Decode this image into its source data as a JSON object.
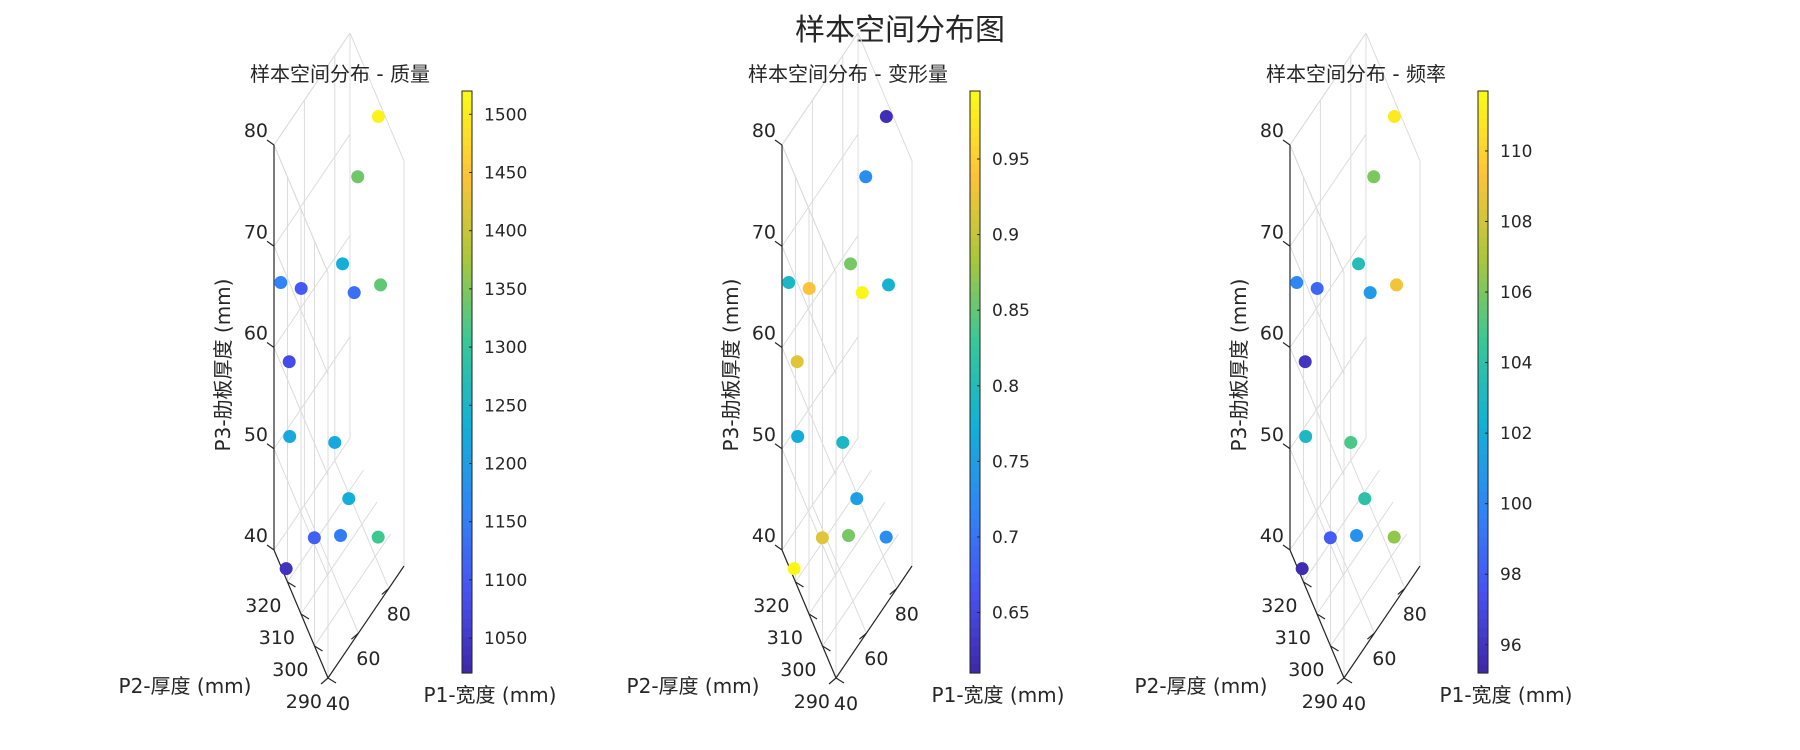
{
  "figure_title": "样本空间分布图",
  "chart_data": [
    {
      "type": "scatter3d",
      "title": "样本空间分布 - 质量",
      "xlabel": "P1-宽度 (mm)",
      "ylabel": "P2-厚度 (mm)",
      "zlabel": "P3-肋板厚度 (mm)",
      "xlim": [
        40,
        90
      ],
      "ylim": [
        290,
        330
      ],
      "zlim": [
        40,
        80
      ],
      "xticks": [
        40,
        60,
        80
      ],
      "yticks": [
        290,
        300,
        310,
        320
      ],
      "zticks": [
        40,
        50,
        60,
        70,
        80
      ],
      "colorbar": {
        "min": 1020,
        "max": 1520,
        "ticks": [
          1050,
          1100,
          1150,
          1200,
          1250,
          1300,
          1350,
          1400,
          1450,
          1500
        ]
      },
      "points": [
        {
          "x": 40,
          "y": 321,
          "z": 41,
          "c": 1040
        },
        {
          "x": 55,
          "y": 317,
          "z": 42,
          "c": 1110
        },
        {
          "x": 66,
          "y": 310,
          "z": 42,
          "c": 1150
        },
        {
          "x": 81,
          "y": 299,
          "z": 42,
          "c": 1310
        },
        {
          "x": 67,
          "y": 305,
          "z": 47,
          "c": 1230
        },
        {
          "x": 64,
          "y": 312,
          "z": 51,
          "c": 1220
        },
        {
          "x": 45,
          "y": 324,
          "z": 52,
          "c": 1220
        },
        {
          "x": 42,
          "y": 321,
          "z": 61,
          "c": 1080
        },
        {
          "x": 49,
          "y": 320,
          "z": 67,
          "c": 1100
        },
        {
          "x": 40,
          "y": 325,
          "z": 68,
          "c": 1160
        },
        {
          "x": 87,
          "y": 304,
          "z": 64,
          "c": 1330
        },
        {
          "x": 75,
          "y": 310,
          "z": 64,
          "c": 1130
        },
        {
          "x": 70,
          "y": 313,
          "z": 67,
          "c": 1230
        },
        {
          "x": 72,
          "y": 304,
          "z": 78,
          "c": 1340
        },
        {
          "x": 82,
          "y": 300,
          "z": 83,
          "c": 1510
        }
      ]
    },
    {
      "type": "scatter3d",
      "title": "样本空间分布 - 变形量",
      "xlabel": "P1-宽度 (mm)",
      "ylabel": "P2-厚度 (mm)",
      "zlabel": "P3-肋板厚度 (mm)",
      "xlim": [
        40,
        90
      ],
      "ylim": [
        290,
        330
      ],
      "zlim": [
        40,
        80
      ],
      "xticks": [
        40,
        60,
        80
      ],
      "yticks": [
        290,
        300,
        310,
        320
      ],
      "zticks": [
        40,
        50,
        60,
        70,
        80
      ],
      "colorbar": {
        "min": 0.61,
        "max": 0.995,
        "ticks": [
          0.65,
          0.7,
          0.75,
          0.8,
          0.85,
          0.9,
          0.95
        ]
      },
      "points": [
        {
          "x": 40,
          "y": 321,
          "z": 41,
          "c": 0.99
        },
        {
          "x": 55,
          "y": 317,
          "z": 42,
          "c": 0.92
        },
        {
          "x": 66,
          "y": 310,
          "z": 42,
          "c": 0.86
        },
        {
          "x": 81,
          "y": 299,
          "z": 42,
          "c": 0.73
        },
        {
          "x": 67,
          "y": 305,
          "z": 47,
          "c": 0.75
        },
        {
          "x": 64,
          "y": 312,
          "z": 51,
          "c": 0.79
        },
        {
          "x": 45,
          "y": 324,
          "z": 52,
          "c": 0.77
        },
        {
          "x": 42,
          "y": 321,
          "z": 61,
          "c": 0.92
        },
        {
          "x": 49,
          "y": 320,
          "z": 67,
          "c": 0.94
        },
        {
          "x": 40,
          "y": 325,
          "z": 68,
          "c": 0.79
        },
        {
          "x": 87,
          "y": 304,
          "z": 64,
          "c": 0.78
        },
        {
          "x": 75,
          "y": 310,
          "z": 64,
          "c": 0.99
        },
        {
          "x": 70,
          "y": 313,
          "z": 67,
          "c": 0.86
        },
        {
          "x": 72,
          "y": 304,
          "z": 78,
          "c": 0.73
        },
        {
          "x": 82,
          "y": 300,
          "z": 83,
          "c": 0.62
        }
      ]
    },
    {
      "type": "scatter3d",
      "title": "样本空间分布 - 频率",
      "xlabel": "P1-宽度 (mm)",
      "ylabel": "P2-厚度 (mm)",
      "zlabel": "P3-肋板厚度 (mm)",
      "xlim": [
        40,
        90
      ],
      "ylim": [
        290,
        330
      ],
      "zlim": [
        40,
        80
      ],
      "xticks": [
        40,
        60,
        80
      ],
      "yticks": [
        290,
        300,
        310,
        320
      ],
      "zticks": [
        40,
        50,
        60,
        70,
        80
      ],
      "colorbar": {
        "min": 95.2,
        "max": 111.7,
        "ticks": [
          96,
          98,
          100,
          102,
          104,
          106,
          108,
          110
        ]
      },
      "points": [
        {
          "x": 40,
          "y": 321,
          "z": 41,
          "c": 95.5
        },
        {
          "x": 55,
          "y": 317,
          "z": 42,
          "c": 98.0
        },
        {
          "x": 66,
          "y": 310,
          "z": 42,
          "c": 100.5
        },
        {
          "x": 81,
          "y": 299,
          "z": 42,
          "c": 106.5
        },
        {
          "x": 67,
          "y": 305,
          "z": 47,
          "c": 104.0
        },
        {
          "x": 64,
          "y": 312,
          "z": 51,
          "c": 105.0
        },
        {
          "x": 45,
          "y": 324,
          "z": 52,
          "c": 103.0
        },
        {
          "x": 42,
          "y": 321,
          "z": 61,
          "c": 96.0
        },
        {
          "x": 49,
          "y": 320,
          "z": 67,
          "c": 98.5
        },
        {
          "x": 40,
          "y": 325,
          "z": 68,
          "c": 100.0
        },
        {
          "x": 87,
          "y": 304,
          "z": 64,
          "c": 109.0
        },
        {
          "x": 75,
          "y": 310,
          "z": 64,
          "c": 101.0
        },
        {
          "x": 70,
          "y": 313,
          "z": 67,
          "c": 103.5
        },
        {
          "x": 72,
          "y": 304,
          "z": 78,
          "c": 106.0
        },
        {
          "x": 82,
          "y": 300,
          "z": 83,
          "c": 111.0
        }
      ]
    }
  ]
}
